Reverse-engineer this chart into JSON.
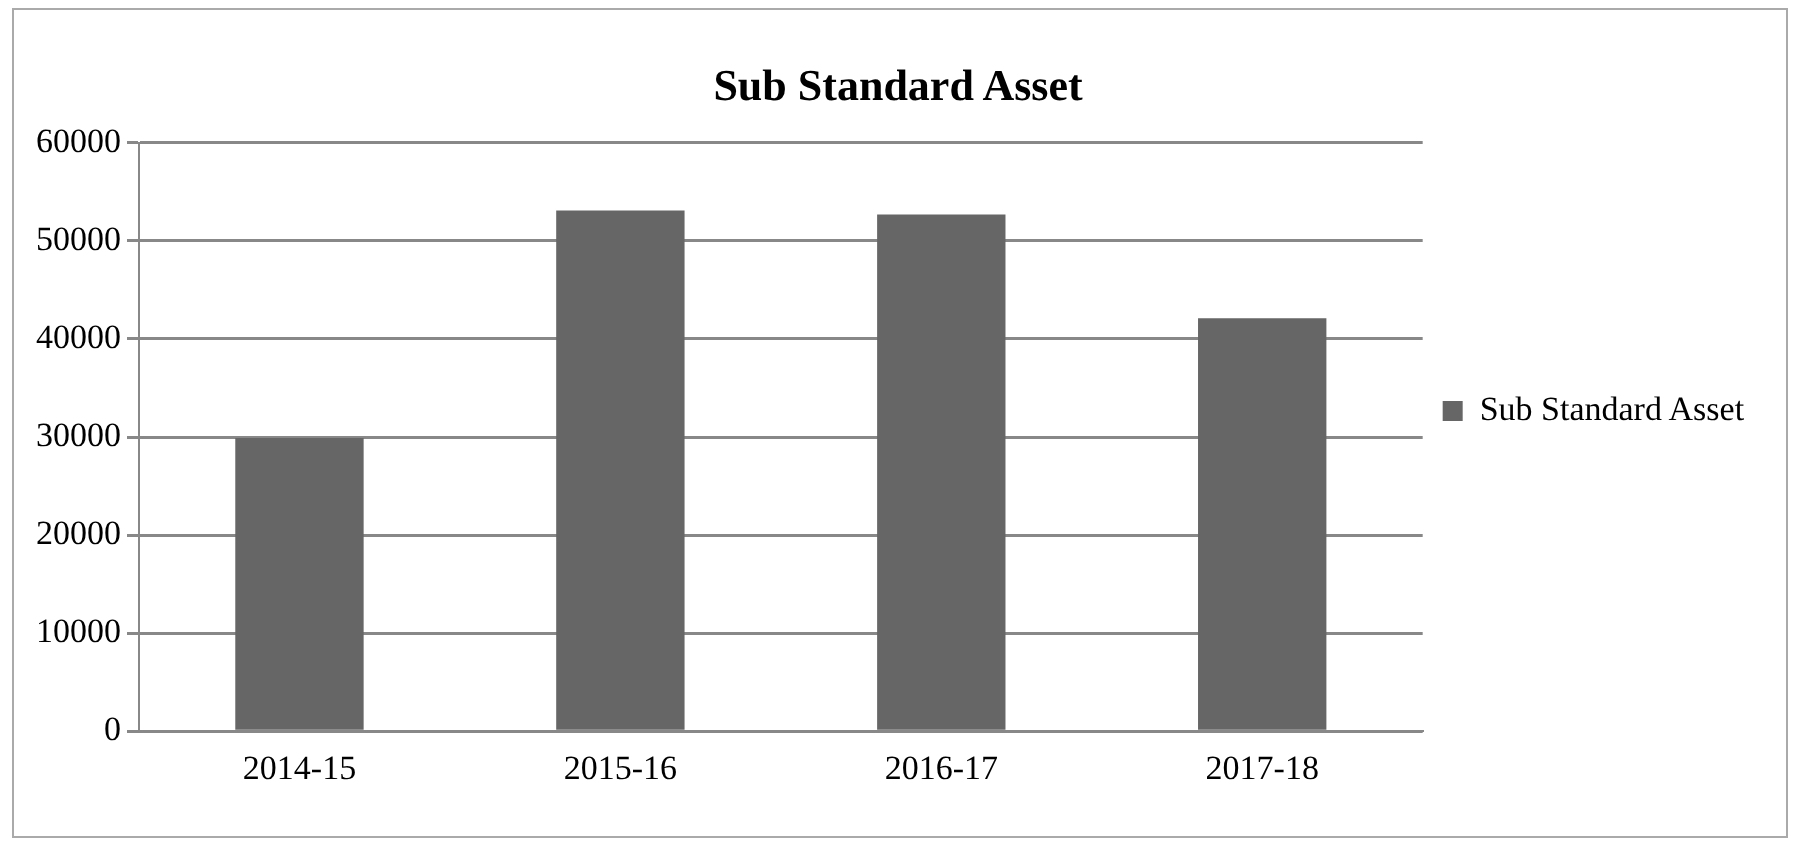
{
  "chart_data": {
    "type": "bar",
    "title": "Sub Standard Asset",
    "categories": [
      "2014-15",
      "2015-16",
      "2016-17",
      "2017-18"
    ],
    "series": [
      {
        "name": "Sub Standard Asset",
        "color": "#666666",
        "values": [
          29900,
          53100,
          52700,
          42100
        ]
      }
    ],
    "ylim": [
      0,
      60000
    ],
    "yticks": [
      0,
      10000,
      20000,
      30000,
      40000,
      50000,
      60000
    ],
    "grid": "y",
    "legend": "right"
  }
}
